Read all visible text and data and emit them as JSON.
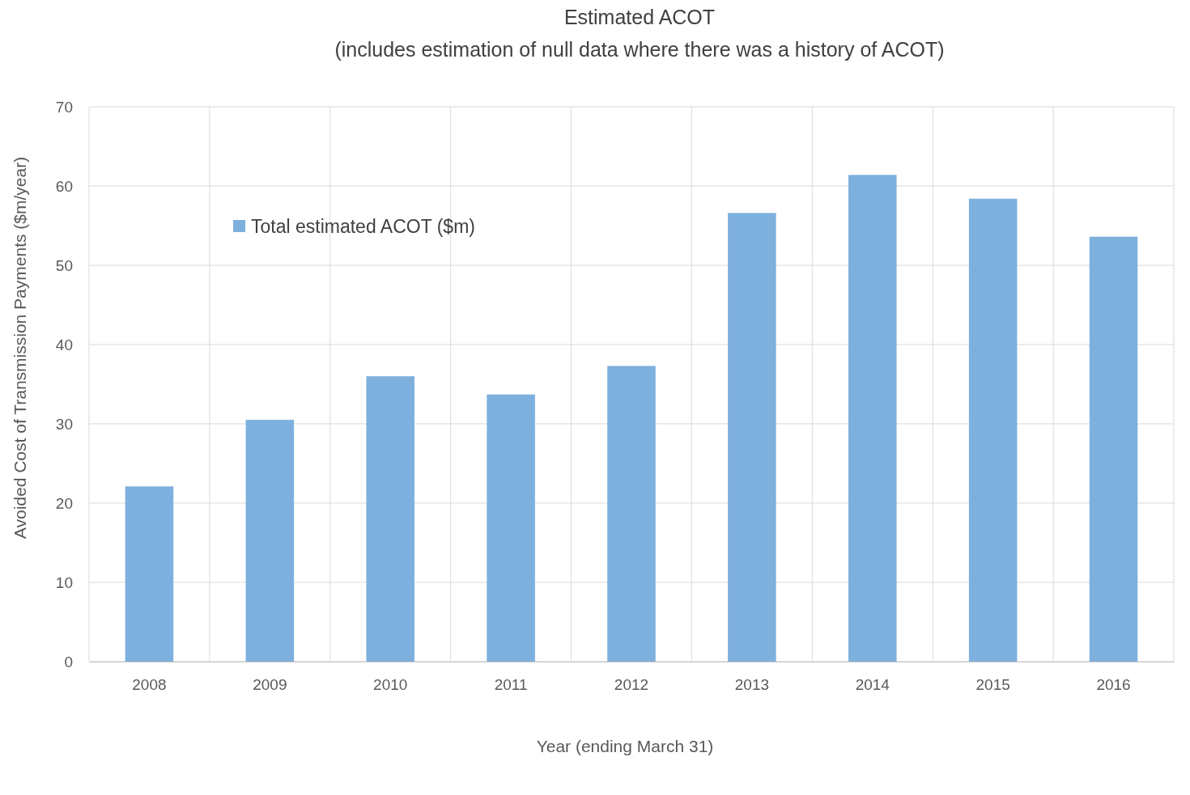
{
  "chart_data": {
    "type": "bar",
    "title": "Estimated ACOT",
    "subtitle": "(includes estimation of null data where there was a history of ACOT)",
    "xlabel": "Year (ending March 31)",
    "ylabel": "Avoided Cost of Transmission Payments ($m/year)",
    "categories": [
      "2008",
      "2009",
      "2010",
      "2011",
      "2012",
      "2013",
      "2014",
      "2015",
      "2016"
    ],
    "series": [
      {
        "name": "Total estimated ACOT ($m)",
        "color": "#7eb0de",
        "values": [
          22.1,
          30.5,
          36.0,
          33.7,
          37.3,
          56.6,
          61.4,
          58.4,
          53.6
        ]
      }
    ],
    "ylim": [
      0,
      70
    ],
    "yticks": [
      0,
      10,
      20,
      30,
      40,
      50,
      60,
      70
    ],
    "grid": true,
    "legend": "top left"
  }
}
